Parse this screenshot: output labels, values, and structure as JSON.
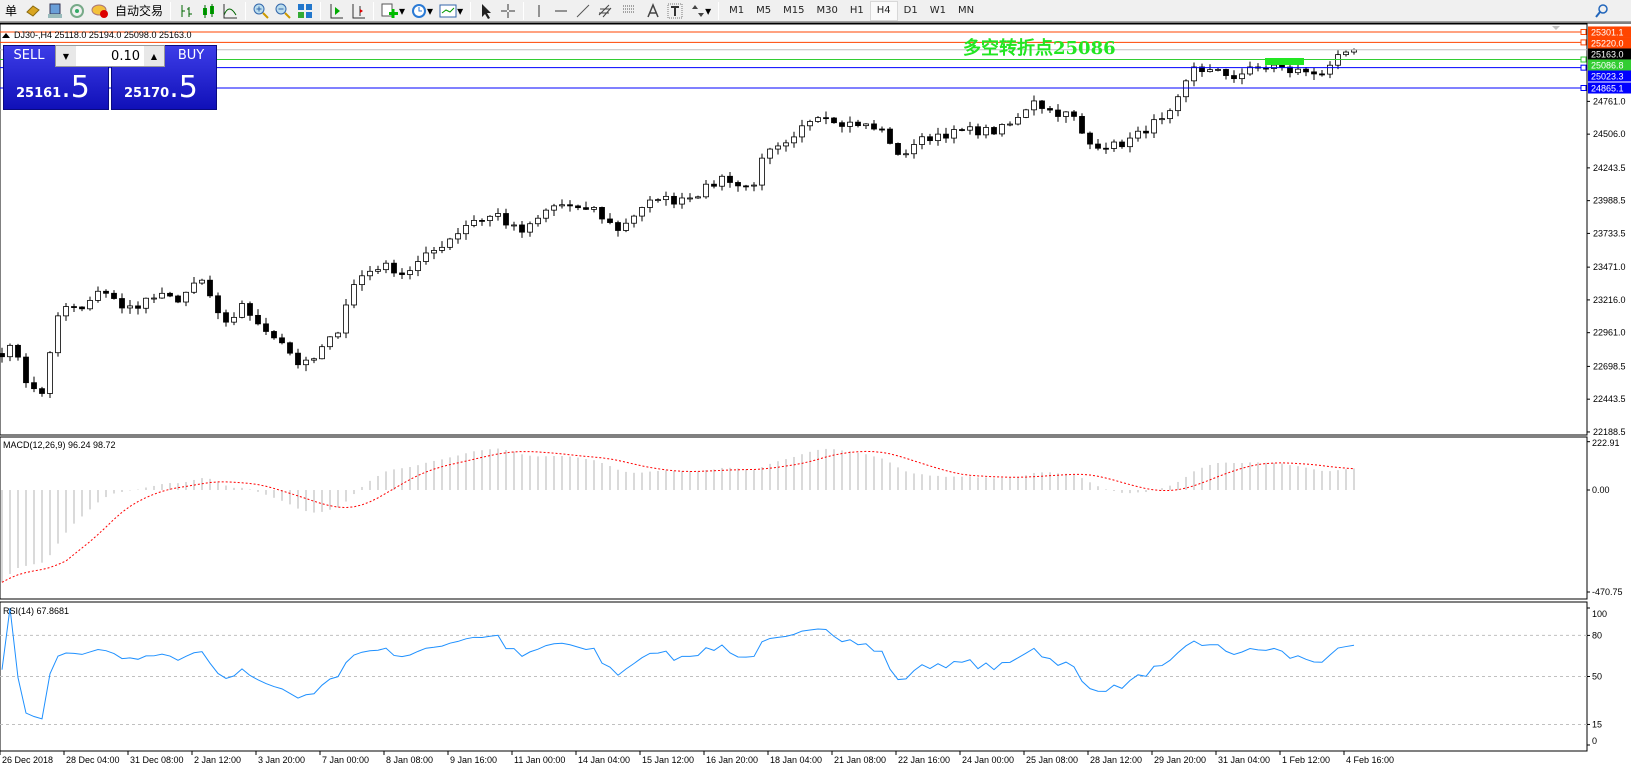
{
  "toolbar": {
    "menu_fragment": "单",
    "autotrade_label": "自动交易",
    "periods": [
      "M1",
      "M5",
      "M15",
      "M30",
      "H1",
      "H4",
      "D1",
      "W1",
      "MN"
    ],
    "active_period": "H4",
    "icons": [
      "profile-icon",
      "market-watch-icon",
      "signals-icon",
      "autotrade-icon",
      "bar-chart-icon",
      "candlestick-icon",
      "line-chart-icon",
      "zoom-in-icon",
      "zoom-out-icon",
      "tile-windows-icon",
      "autoscroll-icon",
      "chart-shift-icon",
      "indicators-icon",
      "periodicity-icon",
      "templates-icon",
      "cursor-icon",
      "crosshair-icon",
      "vertical-line-icon",
      "horizontal-line-icon",
      "trendline-icon",
      "fibonacci-expansion-icon",
      "fibonacci-fan-icon",
      "text-icon",
      "text-label-icon",
      "arrows-icon",
      "search-icon"
    ]
  },
  "chart": {
    "symbol_line": "DJ30-,H4  25118.0 25194.0 25098.0 25163.0",
    "annotation": "多空转折点25086",
    "annotation_color": "#22e622",
    "current_price": "25163.0"
  },
  "trade_panel": {
    "sell_label": "SELL",
    "buy_label": "BUY",
    "lots": "0.10",
    "sell_price_main": "25161",
    "sell_price_frac": ".5",
    "buy_price_main": "25170",
    "buy_price_frac": ".5"
  },
  "levels": [
    {
      "price": "25301.1",
      "color": "#ff4500"
    },
    {
      "price": "25220.0",
      "color": "#ff4500"
    },
    {
      "price": "25086.8",
      "color": "#32cd32"
    },
    {
      "price": "25023.3",
      "color": "#0000ff"
    },
    {
      "price": "24865.1",
      "color": "#0000ff"
    }
  ],
  "price_axis": [
    "24761.0",
    "24506.0",
    "24243.5",
    "23988.5",
    "23733.5",
    "23471.0",
    "23216.0",
    "22961.0",
    "22698.5",
    "22443.5",
    "22188.5"
  ],
  "macd": {
    "label": "MACD(12,26,9) 96.24 98.72",
    "axis": [
      "222.91",
      "0.00",
      "-470.75"
    ],
    "hist_color": "#c0c0c0",
    "signal_color": "#ff0000"
  },
  "rsi": {
    "label": "RSI(14) 67.8681",
    "axis": [
      "100",
      "80",
      "50",
      "15",
      "0"
    ],
    "line_color": "#1e90ff"
  },
  "time_axis": [
    "26 Dec 2018",
    "28 Dec 04:00",
    "31 Dec 08:00",
    "2 Jan 12:00",
    "3 Jan 20:00",
    "7 Jan 00:00",
    "8 Jan 08:00",
    "9 Jan 16:00",
    "11 Jan 00:00",
    "14 Jan 04:00",
    "15 Jan 12:00",
    "16 Jan 20:00",
    "18 Jan 04:00",
    "21 Jan 08:00",
    "22 Jan 16:00",
    "24 Jan 00:00",
    "25 Jan 08:00",
    "28 Jan 12:00",
    "29 Jan 20:00",
    "31 Jan 04:00",
    "1 Feb 12:00",
    "4 Feb 16:00"
  ],
  "chart_data": {
    "type": "candlestick",
    "timeframe": "H4",
    "approx_closes": [
      22809,
      22849,
      22525,
      22485,
      23052,
      23173,
      23133,
      23254,
      23295,
      23133,
      23173,
      23230,
      23238,
      23214,
      23295,
      23360,
      23133,
      22971,
      23214,
      23011,
      22971,
      22890,
      22728,
      22712,
      22849,
      22955,
      23295,
      23416,
      23473,
      23473,
      23416,
      23497,
      23578,
      23659,
      23740,
      23838,
      23846,
      23886,
      23781,
      23740,
      23838,
      23943,
      23959,
      23902,
      23943,
      23846,
      23765,
      23862,
      23927,
      24024,
      23983,
      24024,
      24048,
      24105,
      24186,
      24105,
      24089,
      24348,
      24388,
      24429,
      24591,
      24672,
      24631,
      24591,
      24591,
      24550,
      24526,
      24307,
      24429,
      24469,
      24510,
      24510,
      24534,
      24534,
      24526,
      24558,
      24631,
      24793,
      24696,
      24672,
      24648,
      24429,
      24429,
      24413,
      24445,
      24510,
      24591,
      24607,
      24793,
      25036,
      24996,
      24980,
      24955,
      24996,
      25020,
      25036,
      24996,
      24996,
      24996,
      24980,
      25117,
      25163
    ]
  }
}
